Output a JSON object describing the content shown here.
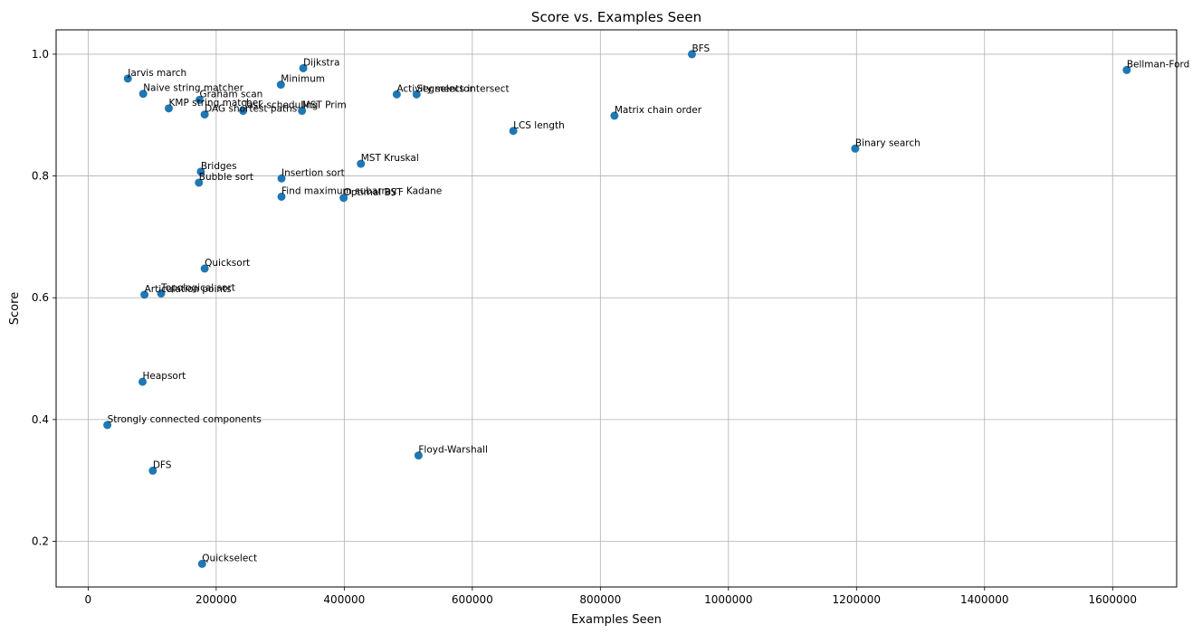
{
  "chart_data": {
    "type": "scatter",
    "title": "Score vs. Examples Seen",
    "xlabel": "Examples Seen",
    "ylabel": "Score",
    "xlim": [
      -50000,
      1700000
    ],
    "ylim": [
      0.125,
      1.04
    ],
    "xticks": [
      0,
      200000,
      400000,
      600000,
      800000,
      1000000,
      1200000,
      1400000,
      1600000
    ],
    "yticks": [
      0.2,
      0.4,
      0.6,
      0.8,
      1.0
    ],
    "ytick_labels": [
      "0.2",
      "0.4",
      "0.6",
      "0.8",
      "1.0"
    ],
    "grid": true,
    "marker_color": "#1f77b4",
    "points": [
      {
        "label": "Jarvis march",
        "x": 62000,
        "y": 0.96
      },
      {
        "label": "Naive string matcher",
        "x": 86000,
        "y": 0.935
      },
      {
        "label": "Graham scan",
        "x": 174000,
        "y": 0.925
      },
      {
        "label": "KMP string matcher",
        "x": 126000,
        "y": 0.911
      },
      {
        "label": "DAG shortest paths",
        "x": 182000,
        "y": 0.901
      },
      {
        "label": "Task scheduling",
        "x": 242000,
        "y": 0.907
      },
      {
        "label": "Dijkstra",
        "x": 336000,
        "y": 0.977
      },
      {
        "label": "Minimum",
        "x": 301000,
        "y": 0.95
      },
      {
        "label": "MST Prim",
        "x": 334000,
        "y": 0.907
      },
      {
        "label": "Activity selector",
        "x": 482000,
        "y": 0.934
      },
      {
        "label": "Segments intersect",
        "x": 513000,
        "y": 0.934
      },
      {
        "label": "BFS",
        "x": 943000,
        "y": 1.0
      },
      {
        "label": "Bellman-Ford",
        "x": 1622000,
        "y": 0.974
      },
      {
        "label": "Matrix chain order",
        "x": 822000,
        "y": 0.899
      },
      {
        "label": "LCS length",
        "x": 664000,
        "y": 0.874
      },
      {
        "label": "Binary search",
        "x": 1198000,
        "y": 0.845
      },
      {
        "label": "MST Kruskal",
        "x": 426000,
        "y": 0.82
      },
      {
        "label": "Bridges",
        "x": 176000,
        "y": 0.807
      },
      {
        "label": "Insertion sort",
        "x": 302000,
        "y": 0.796
      },
      {
        "label": "Bubble sort",
        "x": 173000,
        "y": 0.789
      },
      {
        "label": "Find maximum subarray - Kadane",
        "x": 302000,
        "y": 0.766
      },
      {
        "label": "Optimal BST",
        "x": 399000,
        "y": 0.764
      },
      {
        "label": "Quicksort",
        "x": 182000,
        "y": 0.648
      },
      {
        "label": "Articulation points",
        "x": 88000,
        "y": 0.605
      },
      {
        "label": "Topological sort",
        "x": 114000,
        "y": 0.607
      },
      {
        "label": "Heapsort",
        "x": 85000,
        "y": 0.462
      },
      {
        "label": "Strongly connected components",
        "x": 30000,
        "y": 0.391
      },
      {
        "label": "Floyd-Warshall",
        "x": 516000,
        "y": 0.341
      },
      {
        "label": "DFS",
        "x": 101000,
        "y": 0.316
      },
      {
        "label": "Quickselect",
        "x": 178000,
        "y": 0.163
      }
    ]
  }
}
